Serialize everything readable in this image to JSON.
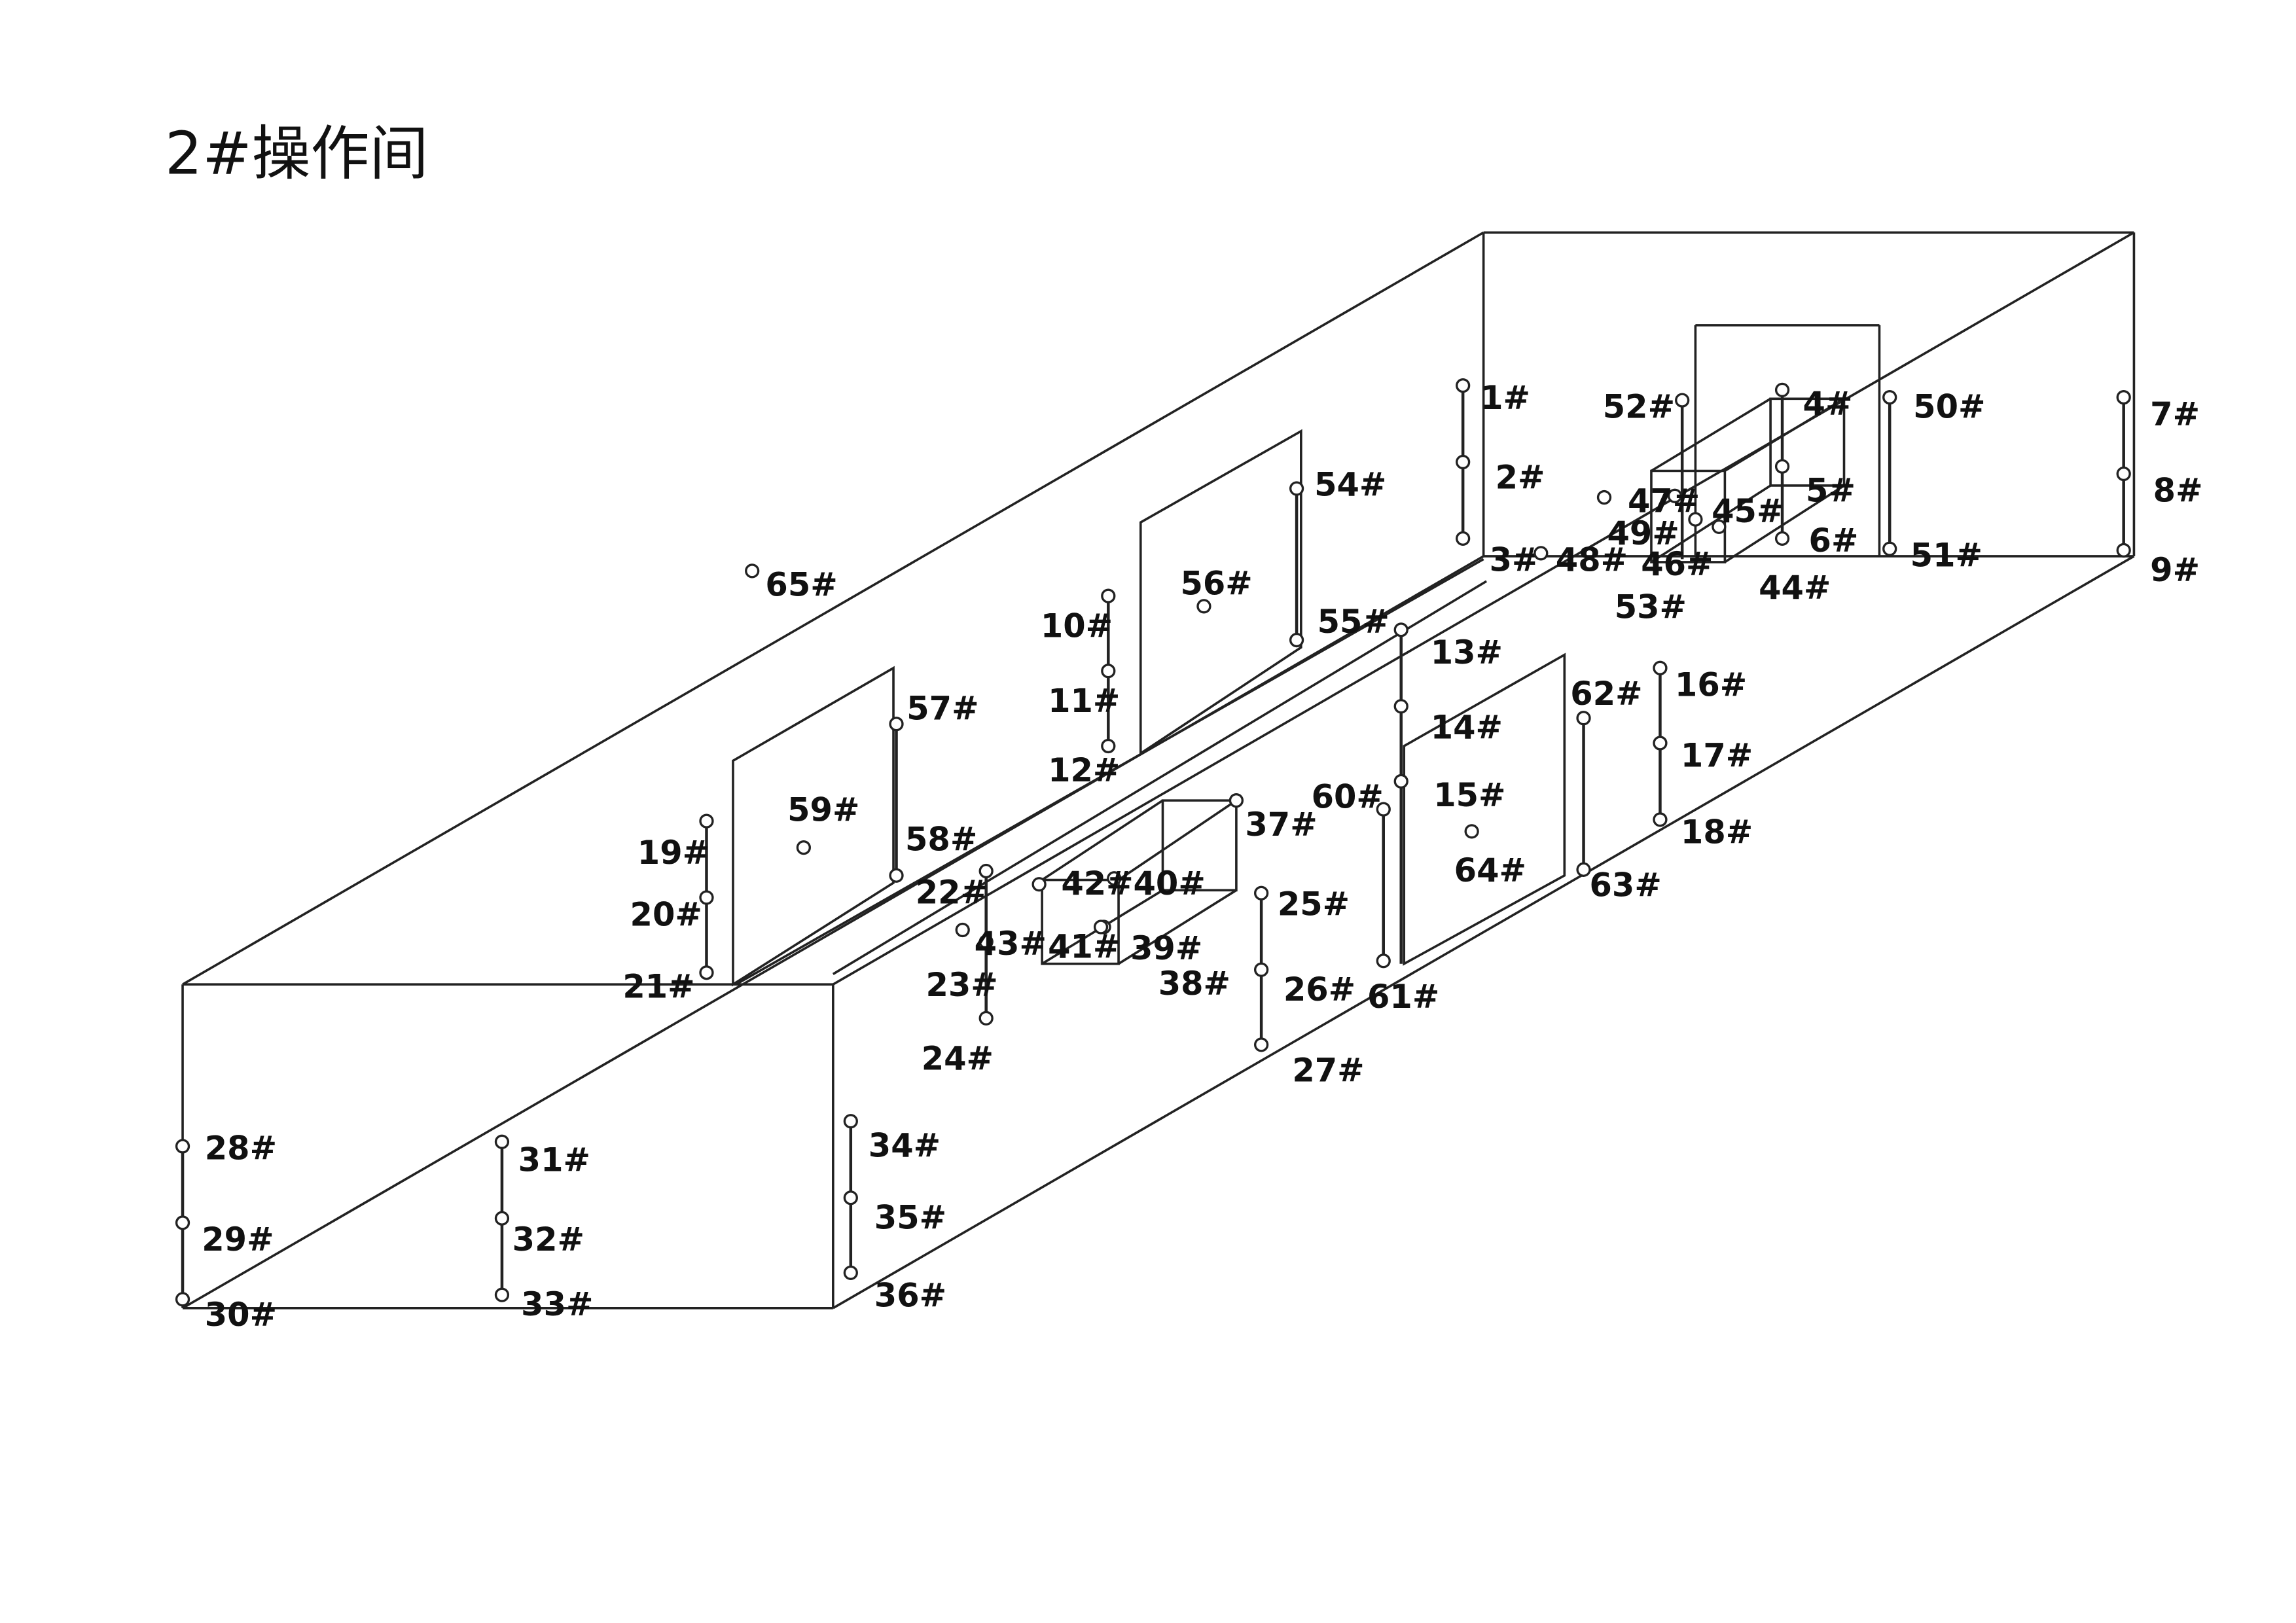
{
  "title": "2#操作间",
  "points": [
    "1#",
    "2#",
    "3#",
    "4#",
    "5#",
    "6#",
    "7#",
    "8#",
    "9#",
    "10#",
    "11#",
    "12#",
    "13#",
    "14#",
    "15#",
    "16#",
    "17#",
    "18#",
    "19#",
    "20#",
    "21#",
    "22#",
    "23#",
    "24#",
    "25#",
    "26#",
    "27#",
    "28#",
    "29#",
    "30#",
    "31#",
    "32#",
    "33#",
    "34#",
    "35#",
    "36#",
    "37#",
    "38#",
    "39#",
    "40#",
    "41#",
    "42#",
    "43#",
    "44#",
    "45#",
    "46#",
    "47#",
    "48#",
    "49#",
    "50#",
    "51#",
    "52#",
    "53#",
    "54#",
    "55#",
    "56#",
    "57#",
    "58#",
    "59#",
    "60#",
    "61#",
    "62#",
    "63#",
    "64#",
    "65#"
  ],
  "colors": {
    "line": "#222222",
    "text": "#111111",
    "background": "#ffffff"
  }
}
